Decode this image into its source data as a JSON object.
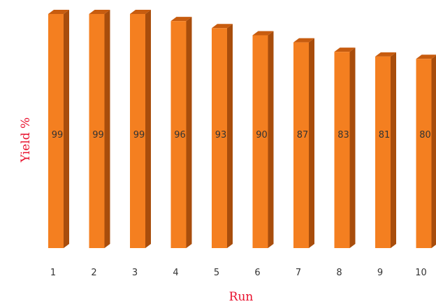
{
  "chart_data": {
    "type": "bar",
    "style": "3d-column",
    "categories": [
      "1",
      "2",
      "3",
      "4",
      "5",
      "6",
      "7",
      "8",
      "9",
      "10"
    ],
    "values": [
      99,
      99,
      99,
      96,
      93,
      90,
      87,
      83,
      81,
      80
    ],
    "xlabel": "Run",
    "ylabel": "Yield %",
    "ylim": [
      0,
      100
    ],
    "grid": false,
    "legend": "none",
    "data_labels": true,
    "colors": {
      "bar_front": "#f47f20",
      "bar_top": "#c75c0f",
      "bar_side": "#a84d0c",
      "axis_title": "#e8112d",
      "tick_text": "#333333"
    }
  }
}
